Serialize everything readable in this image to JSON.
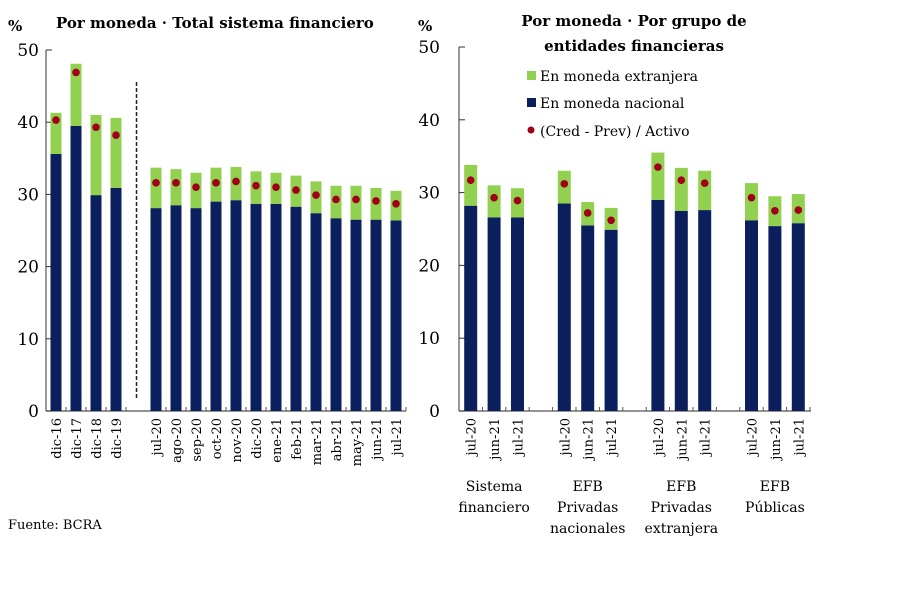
{
  "colors": {
    "foreign": "#92D050",
    "national": "#0A1F5C",
    "dot": "#A00018",
    "axis": "#000000"
  },
  "legend": [
    {
      "key": "foreign",
      "label": "En moneda extranjera",
      "shape": "square"
    },
    {
      "key": "national",
      "label": "En moneda nacional",
      "shape": "square"
    },
    {
      "key": "dot",
      "label": "(Cred - Prev) / Activo",
      "shape": "dot"
    }
  ],
  "source": "Fuente: BCRA",
  "chart_data": [
    {
      "type": "bar",
      "stacked": true,
      "title": "Por moneda · Total sistema financiero",
      "ylabel": "%",
      "ylim": [
        0,
        50
      ],
      "yticks": [
        "0",
        "10",
        "20",
        "30",
        "40",
        "50"
      ],
      "categories": [
        "dic-16",
        "dic-17",
        "dic-18",
        "dic-19",
        "jul-20",
        "ago-20",
        "sep-20",
        "oct-20",
        "nov-20",
        "dic-20",
        "ene-21",
        "feb-21",
        "mar-21",
        "abr-21",
        "may-21",
        "jun-21",
        "jul-21"
      ],
      "separator_after_index": 3,
      "series": [
        {
          "name": "En moneda nacional",
          "values": [
            35.6,
            39.5,
            29.9,
            30.9,
            28.1,
            28.5,
            28.1,
            29.0,
            29.2,
            28.7,
            28.7,
            28.3,
            27.4,
            26.7,
            26.5,
            26.5,
            26.4
          ]
        },
        {
          "name": "En moneda extranjera",
          "values": [
            5.7,
            8.6,
            11.1,
            9.7,
            5.6,
            5.0,
            4.9,
            4.7,
            4.6,
            4.5,
            4.3,
            4.3,
            4.4,
            4.5,
            4.7,
            4.4,
            4.1
          ]
        },
        {
          "name": "(Cred - Prev) / Activo",
          "type": "scatter",
          "values": [
            40.3,
            46.9,
            39.3,
            38.2,
            31.6,
            31.6,
            31.0,
            31.6,
            31.8,
            31.2,
            31.0,
            30.6,
            29.9,
            29.3,
            29.3,
            29.1,
            28.7
          ]
        }
      ]
    },
    {
      "type": "bar",
      "stacked": true,
      "title": "Por moneda · Por grupo de entidades financieras",
      "title_lines": [
        "Por moneda · Por grupo de",
        "entidades financieras"
      ],
      "ylabel": "%",
      "ylim": [
        0,
        50
      ],
      "yticks": [
        "0",
        "10",
        "20",
        "30",
        "40",
        "50"
      ],
      "groups": [
        {
          "label_lines": [
            "Sistema",
            "financiero"
          ],
          "categories": [
            "jul-20",
            "jun-21",
            "jul-21"
          ]
        },
        {
          "label_lines": [
            "EFB",
            "Privadas",
            "nacionales"
          ],
          "categories": [
            "jul-20",
            "jun-21",
            "jul-21"
          ]
        },
        {
          "label_lines": [
            "EFB",
            "Privadas",
            "extranjera"
          ],
          "categories": [
            "jul-20",
            "jun-21",
            "jul-21"
          ]
        },
        {
          "label_lines": [
            "EFB",
            "Públicas"
          ],
          "categories": [
            "jul-20",
            "jun-21",
            "jul-21"
          ]
        }
      ],
      "series": [
        {
          "name": "En moneda nacional",
          "values": [
            28.2,
            26.6,
            26.6,
            28.5,
            25.5,
            24.9,
            29.0,
            27.5,
            27.6,
            26.2,
            25.4,
            25.8
          ]
        },
        {
          "name": "En moneda extranjera",
          "values": [
            5.6,
            4.4,
            4.0,
            4.5,
            3.2,
            3.0,
            6.5,
            5.9,
            5.4,
            5.1,
            4.1,
            4.0
          ]
        },
        {
          "name": "(Cred - Prev) / Activo",
          "type": "scatter",
          "values": [
            31.7,
            29.3,
            28.9,
            31.2,
            27.2,
            26.2,
            33.5,
            31.7,
            31.3,
            29.3,
            27.5,
            27.6
          ]
        }
      ],
      "legend_position": "top-right"
    }
  ]
}
